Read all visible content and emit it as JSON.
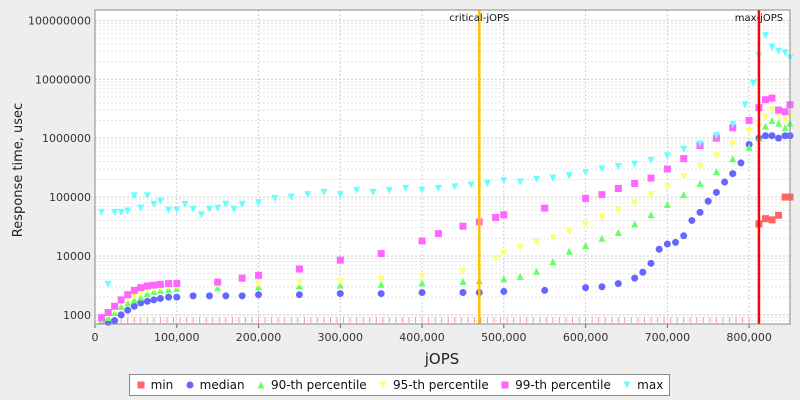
{
  "chart_data": {
    "type": "scatter",
    "title": "",
    "xlabel": "jOPS",
    "ylabel": "Response time, usec",
    "xlim": [
      0,
      850000
    ],
    "ylim": [
      700,
      150000000
    ],
    "ylog": true,
    "x_ticks": [
      "0",
      "100,000",
      "200,000",
      "300,000",
      "400,000",
      "500,000",
      "600,000",
      "700,000",
      "800,000"
    ],
    "y_ticks": [
      "1000",
      "10000",
      "100000",
      "1000000",
      "10000000",
      "100000000"
    ],
    "grid": true,
    "legend_position": "bottom",
    "markers": [
      {
        "label": "critical-jOPS",
        "x": 470000,
        "color": "#ffc000"
      },
      {
        "label": "max-jOPS",
        "x": 812000,
        "color": "#ff0000"
      }
    ],
    "series": [
      {
        "name": "min",
        "color": "#ff6666",
        "shape": "square",
        "x": [
          812000,
          820000,
          828000,
          836000,
          844000,
          850000
        ],
        "y": [
          35000,
          43000,
          41000,
          49000,
          100000,
          100000
        ]
      },
      {
        "name": "median",
        "color": "#6666ff",
        "shape": "circle",
        "x": [
          8000,
          16000,
          24000,
          32000,
          40000,
          48000,
          56000,
          64000,
          72000,
          80000,
          90000,
          100000,
          120000,
          140000,
          160000,
          180000,
          200000,
          250000,
          300000,
          350000,
          400000,
          450000,
          470000,
          500000,
          550000,
          600000,
          620000,
          640000,
          660000,
          670000,
          680000,
          690000,
          700000,
          710000,
          720000,
          730000,
          740000,
          750000,
          760000,
          770000,
          780000,
          790000,
          800000,
          812000,
          820000,
          828000,
          836000,
          844000,
          850000
        ],
        "y": [
          850,
          750,
          800,
          1000,
          1200,
          1400,
          1600,
          1700,
          1800,
          1900,
          2000,
          2000,
          2100,
          2100,
          2100,
          2100,
          2200,
          2200,
          2300,
          2300,
          2400,
          2400,
          2400,
          2500,
          2600,
          2900,
          3000,
          3400,
          4200,
          5300,
          7500,
          13000,
          16000,
          17000,
          22000,
          40000,
          55000,
          85000,
          120000,
          180000,
          250000,
          380000,
          780000,
          1000000,
          1100000,
          1100000,
          1000000,
          1100000,
          1100000
        ]
      },
      {
        "name": "90-th percentile",
        "color": "#66ff66",
        "shape": "triangle-up",
        "x": [
          8000,
          16000,
          24000,
          32000,
          40000,
          48000,
          56000,
          64000,
          72000,
          80000,
          90000,
          100000,
          150000,
          200000,
          250000,
          300000,
          350000,
          400000,
          450000,
          470000,
          500000,
          520000,
          540000,
          560000,
          580000,
          600000,
          620000,
          640000,
          660000,
          680000,
          700000,
          720000,
          740000,
          760000,
          780000,
          800000,
          812000,
          820000,
          828000,
          836000,
          844000,
          850000
        ],
        "y": [
          800,
          900,
          1100,
          1400,
          1600,
          1800,
          2000,
          2300,
          2500,
          2600,
          2700,
          2800,
          2900,
          3000,
          3100,
          3200,
          3300,
          3500,
          3700,
          3800,
          4100,
          4500,
          5500,
          8000,
          12000,
          15000,
          20000,
          25000,
          35000,
          50000,
          75000,
          110000,
          170000,
          270000,
          450000,
          700000,
          1000000,
          1600000,
          2000000,
          1800000,
          1500000,
          1800000
        ]
      },
      {
        "name": "95-th percentile",
        "color": "#ffff66",
        "shape": "triangle-down",
        "x": [
          8000,
          16000,
          24000,
          32000,
          40000,
          48000,
          56000,
          64000,
          72000,
          80000,
          90000,
          100000,
          150000,
          200000,
          250000,
          300000,
          350000,
          400000,
          450000,
          470000,
          490000,
          500000,
          520000,
          540000,
          560000,
          580000,
          600000,
          620000,
          640000,
          660000,
          680000,
          700000,
          720000,
          740000,
          760000,
          780000,
          800000,
          812000,
          820000,
          828000,
          836000,
          844000,
          850000
        ],
        "y": [
          850,
          1000,
          1200,
          1600,
          1900,
          2100,
          2300,
          2600,
          2800,
          2900,
          3000,
          3100,
          3200,
          3300,
          3500,
          3700,
          4000,
          4500,
          5500,
          6500,
          9000,
          11000,
          14000,
          17000,
          20000,
          26000,
          34000,
          45000,
          60000,
          80000,
          110000,
          150000,
          220000,
          330000,
          500000,
          800000,
          1300000,
          1600000,
          2300000,
          3000000,
          2500000,
          2000000,
          2300000
        ]
      },
      {
        "name": "99-th percentile",
        "color": "#ff66ff",
        "shape": "square",
        "x": [
          8000,
          16000,
          24000,
          32000,
          40000,
          48000,
          56000,
          64000,
          72000,
          80000,
          90000,
          100000,
          150000,
          180000,
          200000,
          250000,
          300000,
          350000,
          400000,
          420000,
          450000,
          470000,
          490000,
          500000,
          550000,
          600000,
          620000,
          640000,
          660000,
          680000,
          700000,
          720000,
          740000,
          760000,
          780000,
          800000,
          812000,
          820000,
          828000,
          836000,
          844000,
          850000
        ],
        "y": [
          900,
          1100,
          1400,
          1800,
          2200,
          2600,
          2900,
          3100,
          3200,
          3300,
          3400,
          3400,
          3600,
          4200,
          4700,
          6000,
          8500,
          11000,
          18000,
          24000,
          32000,
          38000,
          45000,
          50000,
          65000,
          95000,
          110000,
          140000,
          170000,
          210000,
          300000,
          450000,
          750000,
          1000000,
          1500000,
          2000000,
          3300000,
          4500000,
          4800000,
          3000000,
          2800000,
          3700000
        ]
      },
      {
        "name": "max",
        "color": "#66ffff",
        "shape": "triangle-down",
        "x": [
          8000,
          16000,
          24000,
          32000,
          40000,
          48000,
          56000,
          64000,
          72000,
          80000,
          90000,
          100000,
          110000,
          120000,
          130000,
          140000,
          150000,
          160000,
          170000,
          180000,
          200000,
          220000,
          240000,
          260000,
          280000,
          300000,
          320000,
          340000,
          360000,
          380000,
          400000,
          420000,
          440000,
          460000,
          480000,
          500000,
          520000,
          540000,
          560000,
          580000,
          600000,
          620000,
          640000,
          660000,
          680000,
          700000,
          720000,
          740000,
          760000,
          780000,
          795000,
          805000,
          812000,
          820000,
          828000,
          836000,
          844000,
          850000
        ],
        "y": [
          55000,
          3300,
          55000,
          55000,
          58000,
          105000,
          65000,
          105000,
          75000,
          85000,
          60000,
          60000,
          75000,
          62000,
          50000,
          62000,
          65000,
          75000,
          62000,
          75000,
          80000,
          95000,
          100000,
          110000,
          120000,
          110000,
          130000,
          120000,
          130000,
          140000,
          130000,
          140000,
          150000,
          160000,
          170000,
          190000,
          180000,
          200000,
          210000,
          230000,
          260000,
          300000,
          330000,
          360000,
          420000,
          500000,
          650000,
          800000,
          1100000,
          1700000,
          3700000,
          8500000,
          25000000,
          55000000,
          35000000,
          30000000,
          28000000,
          23000000
        ]
      }
    ]
  }
}
